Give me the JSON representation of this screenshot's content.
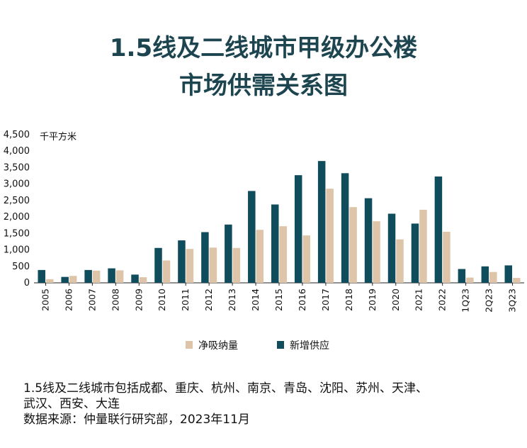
{
  "title": {
    "line1": "1.5线及二线城市甲级办公楼",
    "line2": "市场供需关系图"
  },
  "colors": {
    "title": "#1d4550",
    "supply": "#0f4c5c",
    "absorption": "#dec5aa",
    "axis": "#222222"
  },
  "chart_data": {
    "type": "bar",
    "ylabel": "千平方米",
    "ylim": [
      0,
      4500
    ],
    "yticks": [
      "0",
      "500",
      "1,000",
      "1,500",
      "2,000",
      "2,500",
      "3,000",
      "3,500",
      "4,000",
      "4,500"
    ],
    "ytick_values": [
      0,
      500,
      1000,
      1500,
      2000,
      2500,
      3000,
      3500,
      4000,
      4500
    ],
    "categories": [
      "2005",
      "2006",
      "2007",
      "2008",
      "2009",
      "2010",
      "2011",
      "2012",
      "2013",
      "2014",
      "2015",
      "2016",
      "2017",
      "2018",
      "2019",
      "2020",
      "2021",
      "2022",
      "1Q23",
      "2Q23",
      "3Q23"
    ],
    "series": [
      {
        "name": "净吸纳量",
        "color": "#dec5aa",
        "values": [
          110,
          210,
          370,
          380,
          170,
          680,
          1030,
          1070,
          1060,
          1610,
          1720,
          1440,
          2860,
          2300,
          1870,
          1320,
          2220,
          1550,
          160,
          330,
          150
        ]
      },
      {
        "name": "新增供应",
        "color": "#0f4c5c",
        "values": [
          390,
          180,
          390,
          440,
          250,
          1060,
          1290,
          1540,
          1770,
          2790,
          2380,
          3270,
          3700,
          3330,
          2570,
          2100,
          1800,
          3230,
          420,
          500,
          530
        ]
      }
    ],
    "legend_position": "bottom",
    "grid": false
  },
  "notes": [
    "1.5线及二线城市包括成都、重庆、杭州、南京、青岛、沈阳、苏州、天津、",
    "武汉、西安、大连",
    "数据来源：仲量联行研究部，2023年11月"
  ]
}
